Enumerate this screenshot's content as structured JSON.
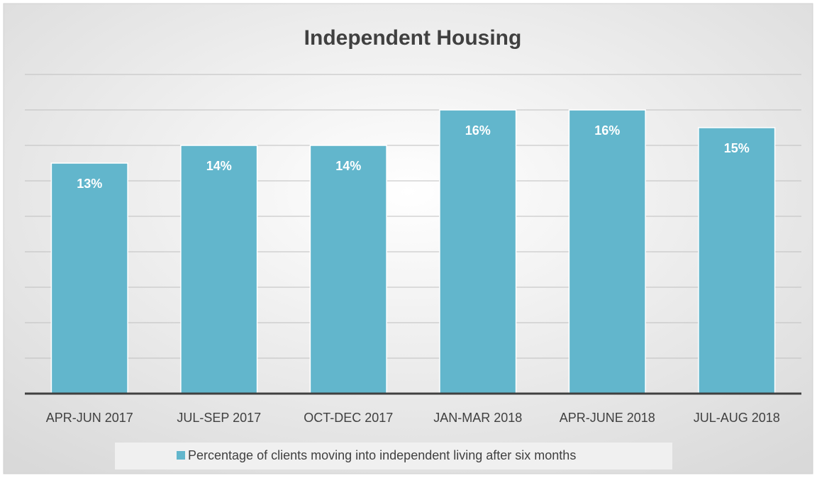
{
  "chart_data": {
    "type": "bar",
    "title": "Independent Housing",
    "categories": [
      "APR-JUN 2017",
      "JUL-SEP 2017",
      "OCT-DEC 2017",
      "JAN-MAR 2018",
      "APR-JUNE 2018",
      "JUL-AUG 2018"
    ],
    "series": [
      {
        "name": "Percentage of clients moving into independent living after six months",
        "color": "#62b6cc",
        "values": [
          13,
          14,
          14,
          16,
          16,
          15
        ],
        "value_labels": [
          "13%",
          "14%",
          "14%",
          "16%",
          "16%",
          "15%"
        ]
      }
    ],
    "ylim": [
      0,
      18
    ],
    "yticks": [
      0,
      2,
      4,
      6,
      8,
      10,
      12,
      14,
      16,
      18
    ],
    "grid": true,
    "legend": "bottom"
  }
}
